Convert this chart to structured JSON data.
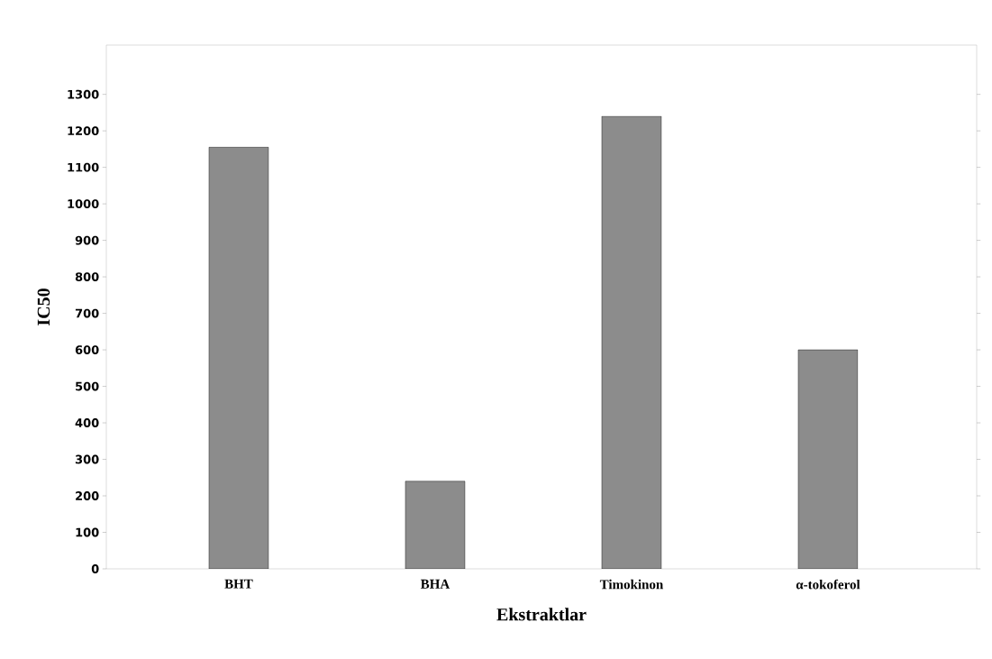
{
  "chart_data": {
    "type": "bar",
    "xlabel": "Ekstraktlar",
    "ylabel": "IC50",
    "categories": [
      "BHT",
      "BHA",
      "Timokinon",
      "α-tokoferol"
    ],
    "values": [
      1155,
      240,
      1240,
      600
    ],
    "color": "#8c8c8c",
    "ylim": [
      0,
      1435
    ],
    "yticks": [
      0,
      100,
      200,
      300,
      400,
      500,
      600,
      700,
      800,
      900,
      1000,
      1100,
      1200,
      1300
    ],
    "grid": false
  }
}
